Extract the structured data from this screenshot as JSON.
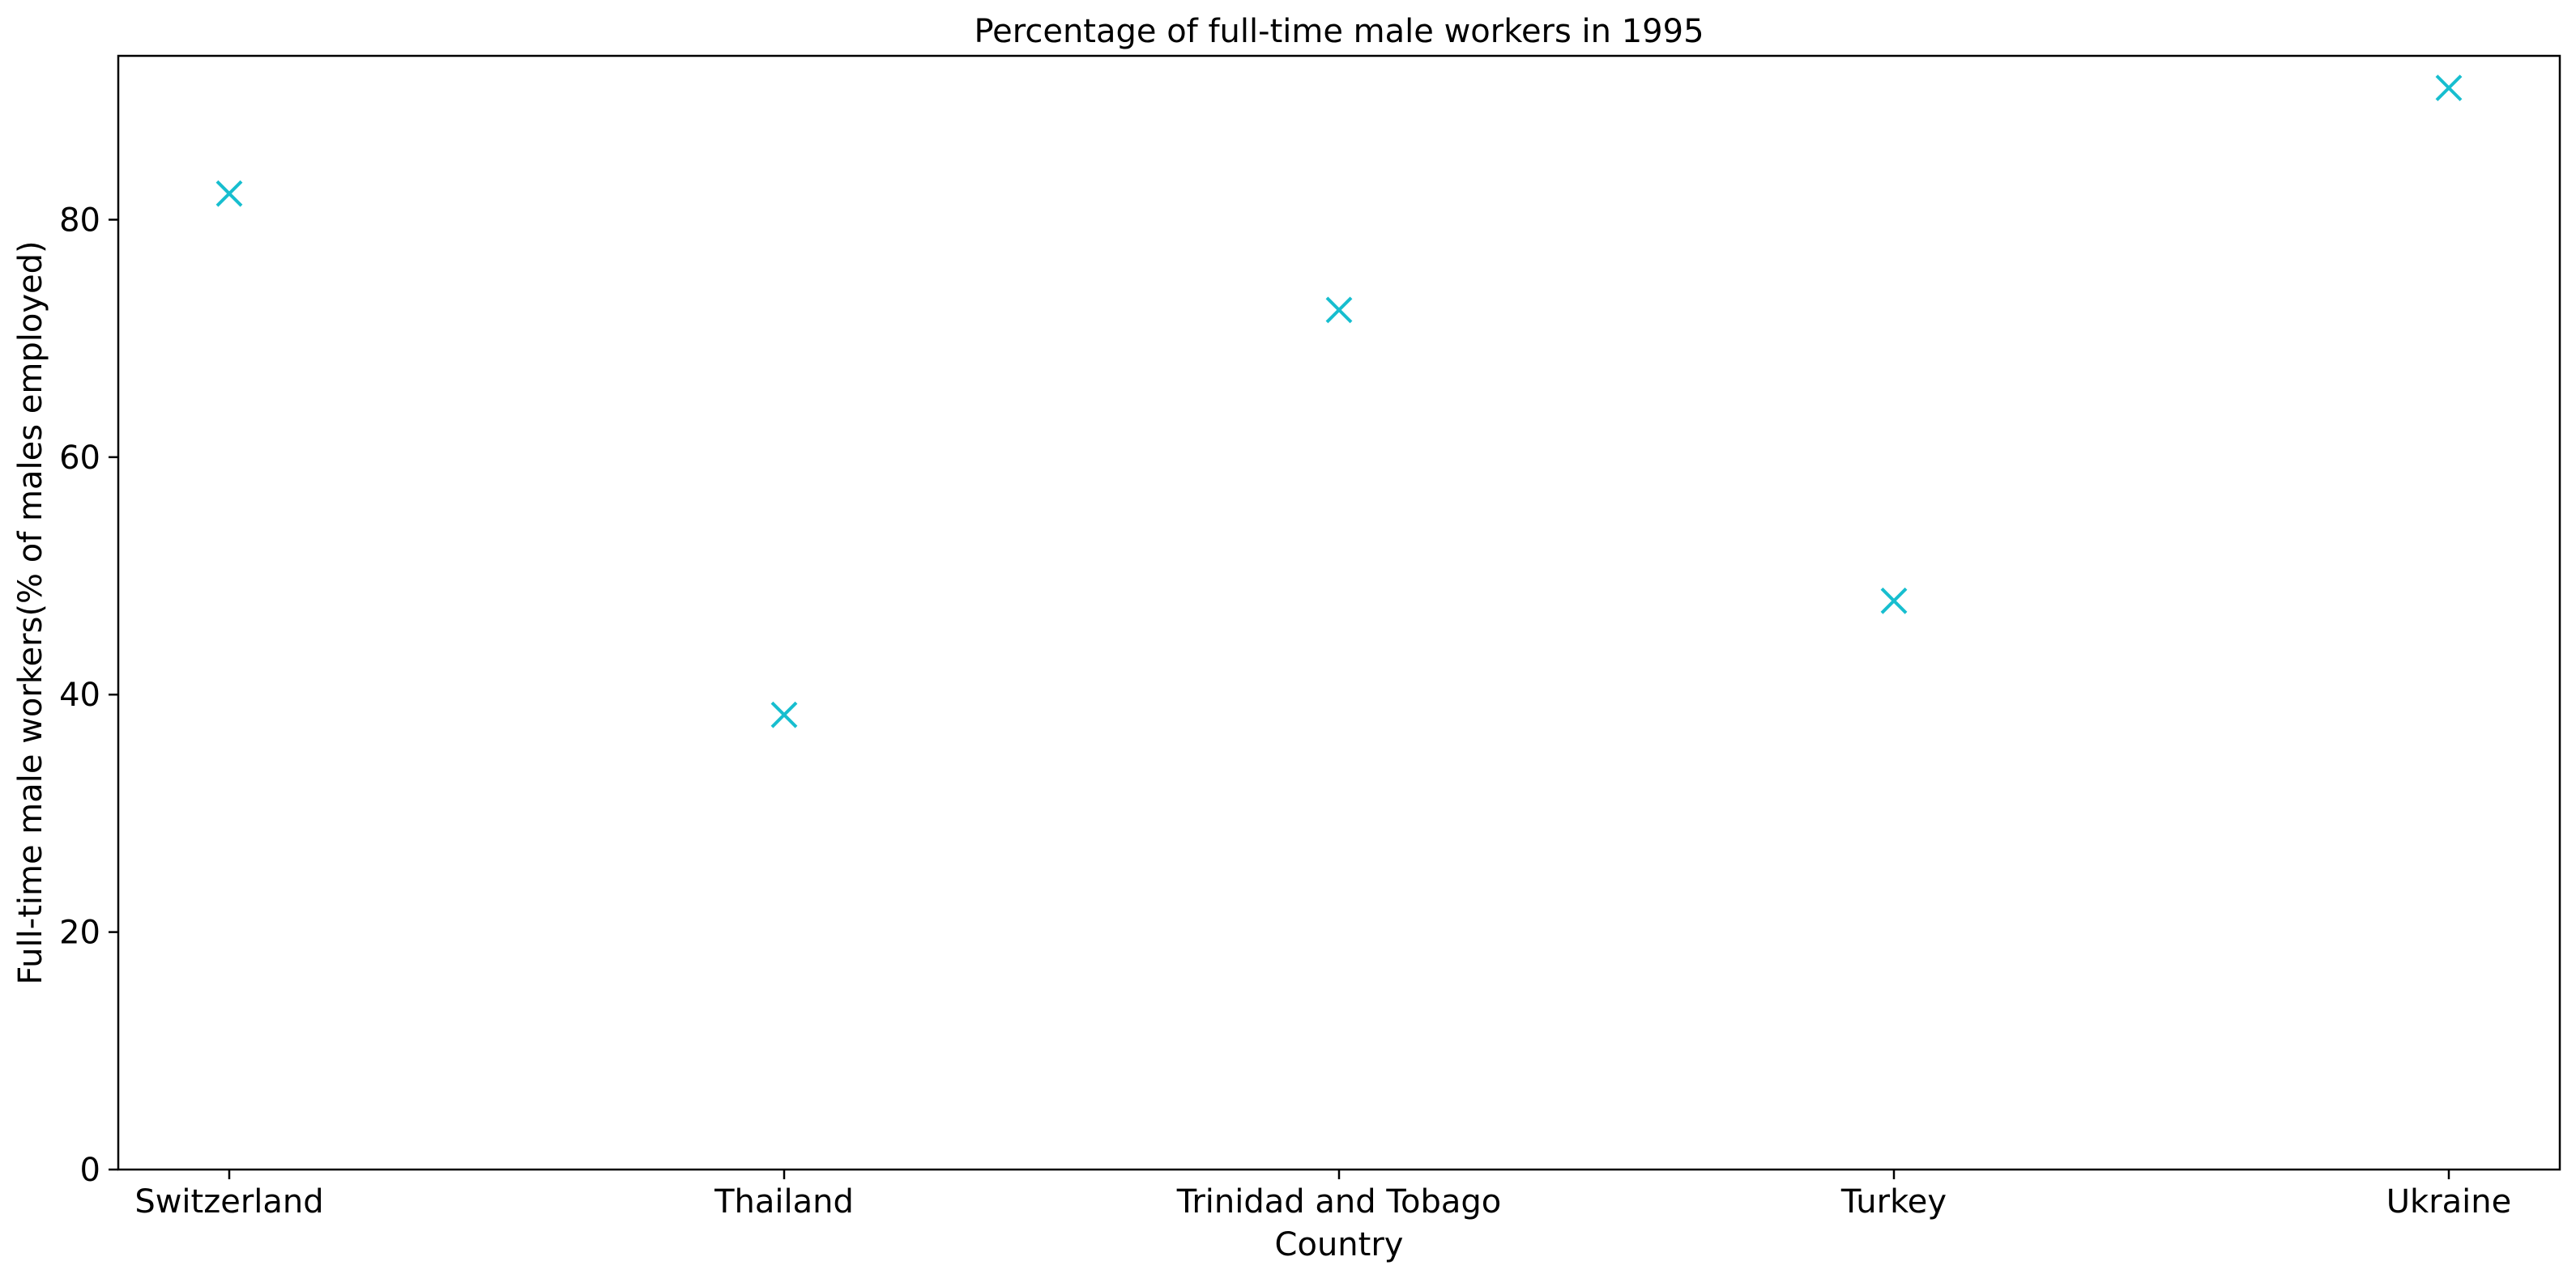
{
  "chart_data": {
    "type": "scatter",
    "title": "Percentage of full-time male workers in 1995",
    "xlabel": "Country",
    "ylabel": "Full-time male workers(% of males employed)",
    "categories": [
      "Switzerland",
      "Thailand",
      "Trinidad and Tobago",
      "Turkey",
      "Ukraine"
    ],
    "series": [
      {
        "values": [
          82.2,
          38.3,
          72.4,
          47.9,
          91.1
        ],
        "color": "#17becf",
        "marker": "x"
      }
    ],
    "ylim": [
      0,
      93.8
    ],
    "yticks": [
      0,
      20,
      40,
      60,
      80
    ],
    "grid": false,
    "legend": false
  }
}
